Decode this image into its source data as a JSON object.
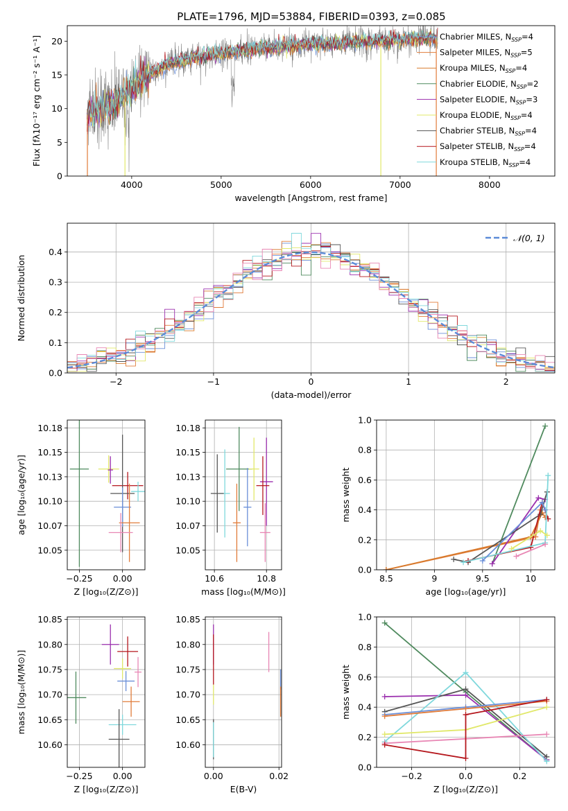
{
  "figure_title": "PLATE=1796, MJD=53884, FIBERID=0393, z=0.085",
  "colors": [
    "#6a8fd8",
    "#e07b39",
    "#d87a2c",
    "#4f8a5e",
    "#9b2fae",
    "#e1e86a",
    "#555555",
    "#b5171d",
    "#7fd8dc",
    "#e886b4",
    "#c7c7c7"
  ],
  "chart_data": [
    {
      "id": "spectrum",
      "type": "line",
      "title": "PLATE=1796, MJD=53884, FIBERID=0393, z=0.085",
      "xlabel": "wavelength [Angstrom, rest frame]",
      "ylabel": "Flux [fλ10⁻¹⁷ erg cm⁻² s⁻¹ A⁻¹]",
      "xlim": [
        3280,
        8730
      ],
      "ylim": [
        0,
        22.3
      ],
      "xticks": [
        4000,
        5000,
        6000,
        7000,
        8000
      ],
      "yticks": [
        0,
        5,
        10,
        15,
        20
      ],
      "grid": false,
      "legend_position": "upper right",
      "data_x_range": [
        3500,
        7420
      ],
      "legend": [
        {
          "label": "Chabrier MILES, N",
          "sub": "SSP",
          "tail": "=4",
          "color": "#6a8fd8"
        },
        {
          "label": "Salpeter MILES, N",
          "sub": "SSP",
          "tail": "=5",
          "color": "#e07b39"
        },
        {
          "label": "Kroupa MILES, N",
          "sub": "SSP",
          "tail": "=4",
          "color": "#d87a2c"
        },
        {
          "label": "Chabrier ELODIE, N",
          "sub": "SSP",
          "tail": "=2",
          "color": "#4f8a5e"
        },
        {
          "label": "Salpeter ELODIE, N",
          "sub": "SSP",
          "tail": "=3",
          "color": "#9b2fae"
        },
        {
          "label": "Kroupa ELODIE, N",
          "sub": "SSP",
          "tail": "=4",
          "color": "#e1e86a"
        },
        {
          "label": "Chabrier STELIB, N",
          "sub": "SSP",
          "tail": "=4",
          "color": "#555555"
        },
        {
          "label": "Salpeter STELIB, N",
          "sub": "SSP",
          "tail": "=4",
          "color": "#b5171d"
        },
        {
          "label": "Kroupa STELIB, N",
          "sub": "SSP",
          "tail": "=4",
          "color": "#7fd8dc"
        }
      ],
      "continuum": [
        [
          3500,
          9.0
        ],
        [
          3800,
          10.5
        ],
        [
          4000,
          13.0
        ],
        [
          4200,
          15.0
        ],
        [
          4400,
          16.5
        ],
        [
          4700,
          17.5
        ],
        [
          5000,
          18.2
        ],
        [
          5500,
          19.0
        ],
        [
          6000,
          19.5
        ],
        [
          6500,
          19.8
        ],
        [
          7000,
          20.2
        ],
        [
          7400,
          20.5
        ]
      ]
    },
    {
      "id": "residuals",
      "type": "histogram",
      "xlabel": "(data-model)/error",
      "ylabel": "Normed distribution",
      "xlim": [
        -2.5,
        2.5
      ],
      "ylim": [
        0,
        0.495
      ],
      "xticks": [
        -2,
        -1,
        0,
        1,
        2
      ],
      "yticks": [
        0.0,
        0.1,
        0.2,
        0.3,
        0.4
      ],
      "grid": true,
      "legend_label": "𝒩(0, 1)",
      "legend_position": "upper right",
      "bin_width": 0.1,
      "bin_start": -2.5,
      "gaussian": {
        "mean": 0,
        "sigma": 1,
        "color": "#5b8bd8"
      }
    },
    {
      "id": "age_vs_Z",
      "type": "errorbar",
      "xlabel": "Z [log₁₀(Z/Z⊙)]",
      "ylabel": "age  [log₁₀(age/yr)]",
      "xlim": [
        -0.32,
        0.13
      ],
      "ylim": [
        10.03,
        10.183
      ],
      "xticks": [
        -0.25,
        0.0
      ],
      "xticklabels": [
        "−0.25",
        "0.00"
      ],
      "yticks": [
        10.05,
        10.075,
        10.1,
        10.125,
        10.15,
        10.175
      ],
      "grid": true,
      "points": [
        {
          "x": -0.25,
          "xerr": 0.055,
          "y": 10.133,
          "yerr": 0.1,
          "color": "#4f8a5e"
        },
        {
          "x": -0.08,
          "xerr": 0.06,
          "y": 10.133,
          "yerr": 0.014,
          "color": "#e1e86a"
        },
        {
          "x": -0.07,
          "xerr": 0.015,
          "y": 10.132,
          "yerr": 0.014,
          "color": "#9b2fae"
        },
        {
          "x": 0.03,
          "xerr": 0.09,
          "y": 10.116,
          "yerr": 0.014,
          "color": "#b5171d"
        },
        {
          "x": 0.0,
          "xerr": 0.07,
          "y": 10.108,
          "yerr": 0.06,
          "color": "#555555"
        },
        {
          "x": 0.09,
          "xerr": 0.04,
          "y": 10.11,
          "yerr": 0.01,
          "color": "#7fd8dc"
        },
        {
          "x": 0.0,
          "xerr": 0.05,
          "y": 10.094,
          "yerr": 0.02,
          "color": "#6a8fd8"
        },
        {
          "x": 0.04,
          "xerr": 0.06,
          "y": 10.078,
          "yerr": 0.04,
          "color": "#e07b39"
        },
        {
          "x": -0.01,
          "xerr": 0.07,
          "y": 10.068,
          "yerr": 0.02,
          "color": "#e886b4"
        }
      ]
    },
    {
      "id": "age_vs_mass",
      "type": "errorbar",
      "xlabel": "mass [log₁₀(M/M⊙)]",
      "ylabel": "",
      "xlim": [
        10.565,
        10.858
      ],
      "ylim": [
        10.03,
        10.183
      ],
      "xticks": [
        10.6,
        10.8
      ],
      "yticks": [
        10.05,
        10.075,
        10.1,
        10.125,
        10.15,
        10.175
      ],
      "grid": true,
      "points": [
        {
          "x": 10.695,
          "xerr": 0.05,
          "y": 10.133,
          "yerr": 0.043,
          "color": "#4f8a5e"
        },
        {
          "x": 10.752,
          "xerr": 0.02,
          "y": 10.133,
          "yerr": 0.032,
          "color": "#e1e86a"
        },
        {
          "x": 10.8,
          "xerr": 0.025,
          "y": 10.12,
          "yerr": 0.045,
          "color": "#9b2fae"
        },
        {
          "x": 10.786,
          "xerr": 0.025,
          "y": 10.116,
          "yerr": 0.03,
          "color": "#b5171d"
        },
        {
          "x": 10.64,
          "xerr": 0.02,
          "y": 10.108,
          "yerr": 0.045,
          "color": "#7fd8dc"
        },
        {
          "x": 10.611,
          "xerr": 0.025,
          "y": 10.108,
          "yerr": 0.04,
          "color": "#555555"
        },
        {
          "x": 10.727,
          "xerr": 0.015,
          "y": 10.094,
          "yerr": 0.04,
          "color": "#6a8fd8"
        },
        {
          "x": 10.686,
          "xerr": 0.015,
          "y": 10.078,
          "yerr": 0.04,
          "color": "#e07b39"
        },
        {
          "x": 10.795,
          "xerr": 0.02,
          "y": 10.068,
          "yerr": 0.03,
          "color": "#e886b4"
        }
      ]
    },
    {
      "id": "mass_weight_vs_age",
      "type": "line",
      "xlabel": "age  [log₁₀(age/yr)]",
      "ylabel": "mass weight",
      "xlim": [
        8.4,
        10.25
      ],
      "ylim": [
        0,
        1
      ],
      "xticks": [
        8.5,
        9.0,
        9.5,
        10.0
      ],
      "yticks": [
        0.0,
        0.2,
        0.4,
        0.6,
        0.8,
        1.0
      ],
      "grid": true,
      "series": [
        {
          "color": "#e07b39",
          "x": [
            8.5,
            10.05,
            10.1,
            10.15
          ],
          "y": [
            0.0,
            0.22,
            0.4,
            0.35
          ]
        },
        {
          "color": "#d87a2c",
          "x": [
            8.5,
            10.0,
            10.12
          ],
          "y": [
            0.0,
            0.22,
            0.38
          ]
        },
        {
          "color": "#4f8a5e",
          "x": [
            9.6,
            10.15
          ],
          "y": [
            0.04,
            0.96
          ]
        },
        {
          "color": "#9b2fae",
          "x": [
            9.6,
            10.08,
            10.15
          ],
          "y": [
            0.04,
            0.48,
            0.47
          ]
        },
        {
          "color": "#555555",
          "x": [
            9.2,
            9.35,
            10.1,
            10.17
          ],
          "y": [
            0.07,
            0.05,
            0.37,
            0.52
          ]
        },
        {
          "color": "#b5171d",
          "x": [
            9.35,
            10.0,
            10.12,
            10.18
          ],
          "y": [
            0.06,
            0.15,
            0.45,
            0.34
          ]
        },
        {
          "color": "#7fd8dc",
          "x": [
            9.3,
            10.15,
            10.18
          ],
          "y": [
            0.05,
            0.18,
            0.63
          ]
        },
        {
          "color": "#e1e86a",
          "x": [
            9.8,
            10.1,
            10.17
          ],
          "y": [
            0.14,
            0.26,
            0.23
          ]
        },
        {
          "color": "#e886b4",
          "x": [
            9.85,
            10.15
          ],
          "y": [
            0.09,
            0.17
          ]
        },
        {
          "color": "#6a8fd8",
          "x": [
            9.5,
            10.12,
            10.15
          ],
          "y": [
            0.06,
            0.45,
            0.4
          ]
        }
      ]
    },
    {
      "id": "mass_vs_Z",
      "type": "errorbar",
      "xlabel": "Z [log₁₀(Z/Z⊙)]",
      "ylabel": "mass [log₁₀(M/M⊙)]",
      "xlim": [
        -0.32,
        0.13
      ],
      "ylim": [
        10.555,
        10.855
      ],
      "xticks": [
        -0.25,
        0.0
      ],
      "xticklabels": [
        "−0.25",
        "0.00"
      ],
      "yticks": [
        10.6,
        10.65,
        10.7,
        10.75,
        10.8,
        10.85
      ],
      "grid": true,
      "points": [
        {
          "x": -0.27,
          "xerr": 0.06,
          "y": 10.694,
          "yerr": 0.052,
          "color": "#4f8a5e"
        },
        {
          "x": -0.07,
          "xerr": 0.05,
          "y": 10.8,
          "yerr": 0.04,
          "color": "#9b2fae"
        },
        {
          "x": 0.03,
          "xerr": 0.06,
          "y": 10.786,
          "yerr": 0.03,
          "color": "#b5171d"
        },
        {
          "x": 0.0,
          "xerr": 0.05,
          "y": 10.752,
          "yerr": 0.02,
          "color": "#e1e86a"
        },
        {
          "x": 0.02,
          "xerr": 0.05,
          "y": 10.727,
          "yerr": 0.02,
          "color": "#6a8fd8"
        },
        {
          "x": 0.05,
          "xerr": 0.05,
          "y": 10.686,
          "yerr": 0.03,
          "color": "#e07b39"
        },
        {
          "x": 0.09,
          "xerr": 0.02,
          "y": 10.745,
          "yerr": 0.03,
          "color": "#e886b4"
        },
        {
          "x": 0.0,
          "xerr": 0.08,
          "y": 10.64,
          "yerr": 0.02,
          "color": "#7fd8dc"
        },
        {
          "x": -0.02,
          "xerr": 0.06,
          "y": 10.611,
          "yerr": 0.06,
          "color": "#555555"
        }
      ]
    },
    {
      "id": "mass_vs_ebv",
      "type": "errorbar",
      "xlabel": "E(B-V)",
      "ylabel": "",
      "xlim": [
        -0.0025,
        0.0208
      ],
      "ylim": [
        10.555,
        10.855
      ],
      "xticks": [
        0.0,
        0.02
      ],
      "xticklabels": [
        "0.00",
        "0.02"
      ],
      "yticks": [
        10.6,
        10.65,
        10.7,
        10.75,
        10.8,
        10.85
      ],
      "grid": true,
      "points": [
        {
          "x": 0.0,
          "xerr": 0,
          "y": 10.8,
          "yerr": 0.04,
          "color": "#9b2fae"
        },
        {
          "x": 0.0,
          "xerr": 0,
          "y": 10.77,
          "yerr": 0.05,
          "color": "#b5171d"
        },
        {
          "x": 0.0,
          "xerr": 0,
          "y": 10.7,
          "yerr": 0.02,
          "color": "#e1e86a"
        },
        {
          "x": 0.0,
          "xerr": 0,
          "y": 10.611,
          "yerr": 0.04,
          "color": "#555555"
        },
        {
          "x": 0.0,
          "xerr": 0,
          "y": 10.61,
          "yerr": 0.035,
          "color": "#7fd8dc"
        },
        {
          "x": 0.0169,
          "xerr": 0,
          "y": 10.785,
          "yerr": 0.04,
          "color": "#e886b4"
        },
        {
          "x": 0.0205,
          "xerr": 0,
          "y": 10.73,
          "yerr": 0.02,
          "color": "#6a8fd8"
        },
        {
          "x": 0.0205,
          "xerr": 0,
          "y": 10.686,
          "yerr": 0.03,
          "color": "#e07b39"
        }
      ]
    },
    {
      "id": "mass_weight_vs_Z",
      "type": "line",
      "xlabel": "Z [log₁₀(Z/Z⊙)]",
      "ylabel": "mass weight",
      "xlim": [
        -0.33,
        0.33
      ],
      "ylim": [
        0,
        1
      ],
      "xticks": [
        -0.2,
        0.0,
        0.2
      ],
      "xticklabels": [
        "−0.2",
        "0.0",
        "0.2"
      ],
      "yticks": [
        0.0,
        0.2,
        0.4,
        0.6,
        0.8,
        1.0
      ],
      "grid": true,
      "series": [
        {
          "color": "#4f8a5e",
          "x": [
            -0.3,
            0.0,
            0.3
          ],
          "y": [
            0.96,
            0.5,
            0.05
          ]
        },
        {
          "color": "#9b2fae",
          "x": [
            -0.3,
            0.0,
            0.3
          ],
          "y": [
            0.47,
            0.48,
            0.05
          ]
        },
        {
          "color": "#555555",
          "x": [
            -0.3,
            0.0,
            0.3
          ],
          "y": [
            0.37,
            0.52,
            0.07
          ]
        },
        {
          "color": "#7fd8dc",
          "x": [
            -0.3,
            0.0,
            0.3
          ],
          "y": [
            0.17,
            0.63,
            0.04
          ]
        },
        {
          "color": "#6a8fd8",
          "x": [
            -0.3,
            0.0,
            0.3
          ],
          "y": [
            0.35,
            0.4,
            0.45
          ]
        },
        {
          "color": "#e07b39",
          "x": [
            -0.3,
            0.0,
            0.3
          ],
          "y": [
            0.34,
            0.39,
            0.44
          ]
        },
        {
          "color": "#e1e86a",
          "x": [
            -0.3,
            0.0,
            0.3
          ],
          "y": [
            0.22,
            0.25,
            0.4
          ]
        },
        {
          "color": "#e886b4",
          "x": [
            -0.3,
            0.0,
            0.3
          ],
          "y": [
            0.16,
            0.19,
            0.22
          ]
        },
        {
          "color": "#b5171d",
          "x": [
            -0.3,
            0.0,
            0.0,
            0.3
          ],
          "y": [
            0.15,
            0.06,
            0.35,
            0.45
          ]
        }
      ]
    }
  ]
}
